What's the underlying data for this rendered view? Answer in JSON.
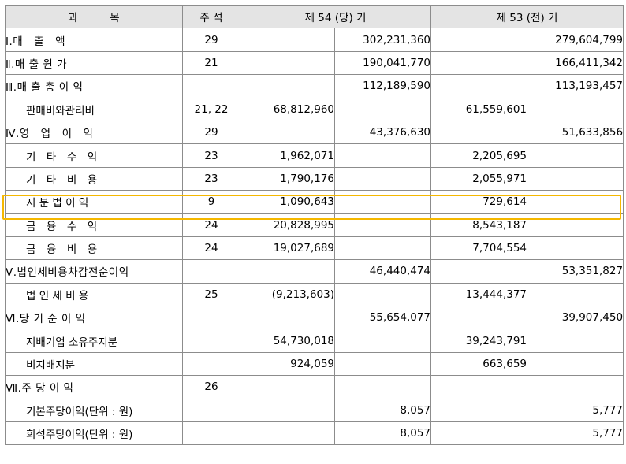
{
  "header": {
    "col_subject": "과　　　목",
    "col_note": "주 석",
    "col_current": "제 54 (당) 기",
    "col_prior": "제 53 (전) 기"
  },
  "rows": [
    {
      "label": "Ⅰ.매　출　액",
      "level": 0,
      "note": "29",
      "cur_detail": "",
      "cur_total": "302,231,360",
      "prev_detail": "",
      "prev_total": "279,604,799"
    },
    {
      "label": "Ⅱ.매 출 원 가",
      "level": 0,
      "note": "21",
      "cur_detail": "",
      "cur_total": "190,041,770",
      "prev_detail": "",
      "prev_total": "166,411,342"
    },
    {
      "label": "Ⅲ.매 출 총 이 익",
      "level": 0,
      "note": "",
      "cur_detail": "",
      "cur_total": "112,189,590",
      "prev_detail": "",
      "prev_total": "113,193,457"
    },
    {
      "label": "판매비와관리비",
      "level": 1,
      "note": "21, 22",
      "cur_detail": "68,812,960",
      "cur_total": "",
      "prev_detail": "61,559,601",
      "prev_total": ""
    },
    {
      "label": "Ⅳ.영　업　이　익",
      "level": 0,
      "note": "29",
      "cur_detail": "",
      "cur_total": "43,376,630",
      "prev_detail": "",
      "prev_total": "51,633,856"
    },
    {
      "label": "기　타　수　익",
      "level": 1,
      "note": "23",
      "cur_detail": "1,962,071",
      "cur_total": "",
      "prev_detail": "2,205,695",
      "prev_total": ""
    },
    {
      "label": "기　타　비　용",
      "level": 1,
      "note": "23",
      "cur_detail": "1,790,176",
      "cur_total": "",
      "prev_detail": "2,055,971",
      "prev_total": ""
    },
    {
      "label": "지 분 법 이 익",
      "level": 2,
      "note": "9",
      "cur_detail": "1,090,643",
      "cur_total": "",
      "prev_detail": "729,614",
      "prev_total": ""
    },
    {
      "label": "금　융　수　익",
      "level": 1,
      "note": "24",
      "cur_detail": "20,828,995",
      "cur_total": "",
      "prev_detail": "8,543,187",
      "prev_total": ""
    },
    {
      "label": "금　융　비　용",
      "level": 1,
      "note": "24",
      "cur_detail": "19,027,689",
      "cur_total": "",
      "prev_detail": "7,704,554",
      "prev_total": ""
    },
    {
      "label": "Ⅴ.법인세비용차감전순이익",
      "level": 0,
      "note": "",
      "cur_detail": "",
      "cur_total": "46,440,474",
      "prev_detail": "",
      "prev_total": "53,351,827"
    },
    {
      "label": "법 인 세 비 용",
      "level": 1,
      "note": "25",
      "cur_detail": "(9,213,603)",
      "cur_total": "",
      "prev_detail": "13,444,377",
      "prev_total": ""
    },
    {
      "label": "Ⅵ.당 기 순 이 익",
      "level": 0,
      "note": "",
      "cur_detail": "",
      "cur_total": "55,654,077",
      "prev_detail": "",
      "prev_total": "39,907,450"
    },
    {
      "label": "지배기업 소유주지분",
      "level": 1,
      "note": "",
      "cur_detail": "54,730,018",
      "cur_total": "",
      "prev_detail": "39,243,791",
      "prev_total": ""
    },
    {
      "label": "비지배지분",
      "level": 1,
      "note": "",
      "cur_detail": "924,059",
      "cur_total": "",
      "prev_detail": "663,659",
      "prev_total": ""
    },
    {
      "label": "Ⅶ.주 당 이 익",
      "level": 0,
      "note": "26",
      "cur_detail": "",
      "cur_total": "",
      "prev_detail": "",
      "prev_total": ""
    },
    {
      "label": "기본주당이익(단위 : 원)",
      "level": 1,
      "note": "",
      "cur_detail": "",
      "cur_total": "8,057",
      "prev_detail": "",
      "prev_total": "5,777"
    },
    {
      "label": "희석주당이익(단위 : 원)",
      "level": 1,
      "note": "",
      "cur_detail": "",
      "cur_total": "8,057",
      "prev_detail": "",
      "prev_total": "5,777"
    }
  ]
}
